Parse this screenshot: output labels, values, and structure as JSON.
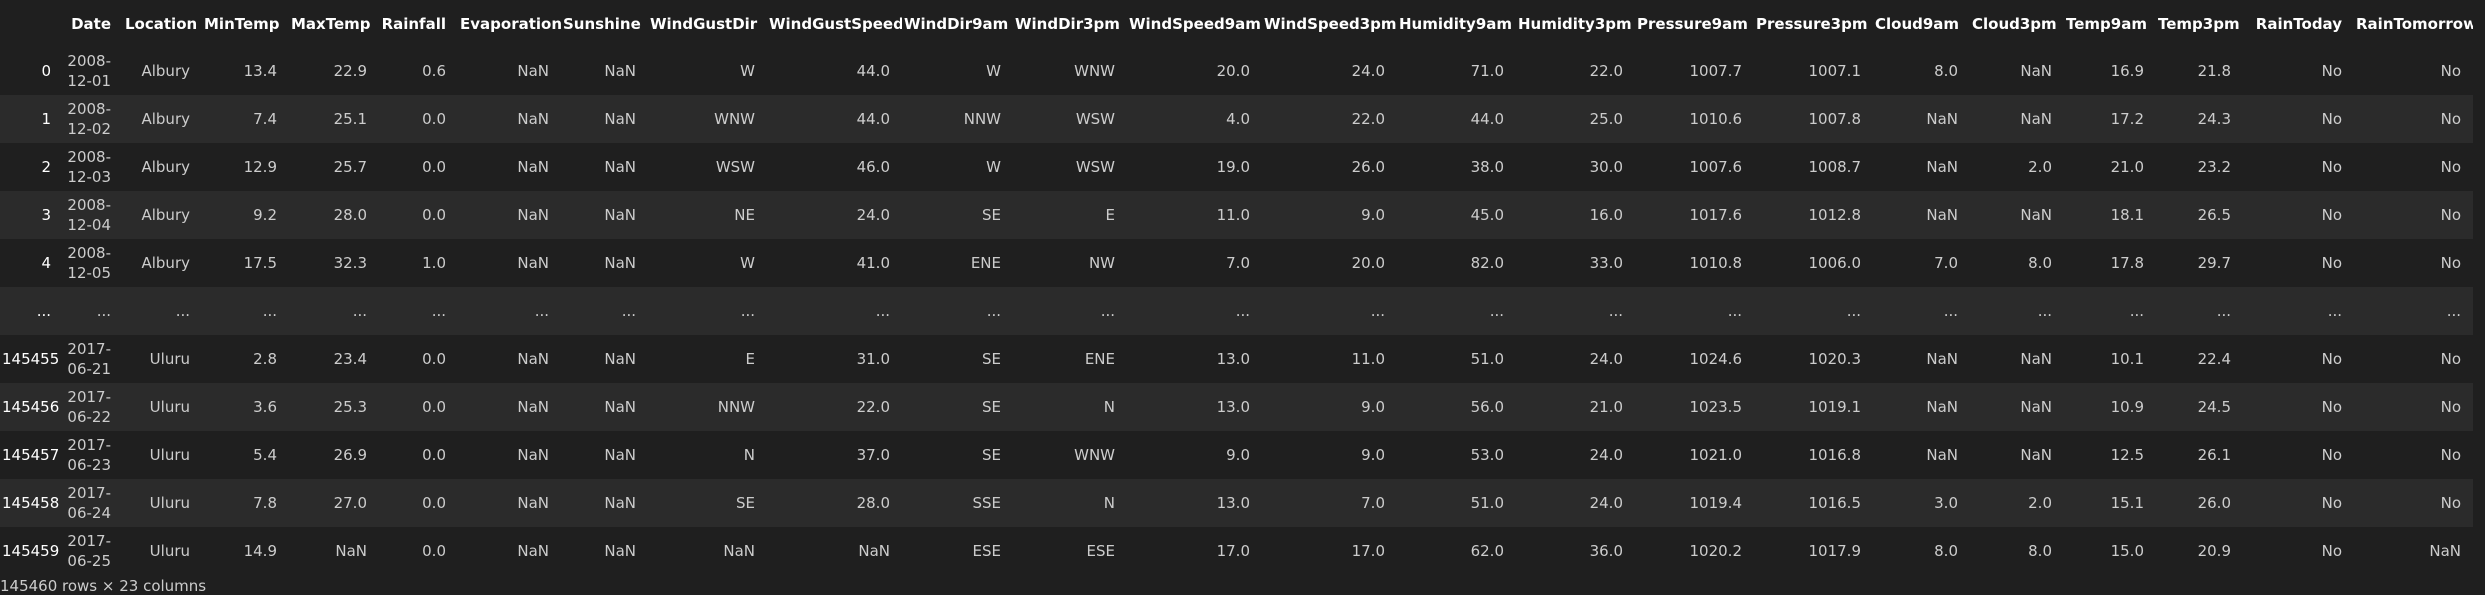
{
  "table": {
    "columns": [
      "Date",
      "Location",
      "MinTemp",
      "MaxTemp",
      "Rainfall",
      "Evaporation",
      "Sunshine",
      "WindGustDir",
      "WindGustSpeed",
      "WindDir9am",
      "WindDir3pm",
      "WindSpeed9am",
      "WindSpeed3pm",
      "Humidity9am",
      "Humidity3pm",
      "Pressure9am",
      "Pressure3pm",
      "Cloud9am",
      "Cloud3pm",
      "Temp9am",
      "Temp3pm",
      "RainToday",
      "RainTomorrow"
    ],
    "rows": [
      {
        "index": "0",
        "cells": [
          "2008-12-01",
          "Albury",
          "13.4",
          "22.9",
          "0.6",
          "NaN",
          "NaN",
          "W",
          "44.0",
          "W",
          "WNW",
          "20.0",
          "24.0",
          "71.0",
          "22.0",
          "1007.7",
          "1007.1",
          "8.0",
          "NaN",
          "16.9",
          "21.8",
          "No",
          "No"
        ]
      },
      {
        "index": "1",
        "cells": [
          "2008-12-02",
          "Albury",
          "7.4",
          "25.1",
          "0.0",
          "NaN",
          "NaN",
          "WNW",
          "44.0",
          "NNW",
          "WSW",
          "4.0",
          "22.0",
          "44.0",
          "25.0",
          "1010.6",
          "1007.8",
          "NaN",
          "NaN",
          "17.2",
          "24.3",
          "No",
          "No"
        ]
      },
      {
        "index": "2",
        "cells": [
          "2008-12-03",
          "Albury",
          "12.9",
          "25.7",
          "0.0",
          "NaN",
          "NaN",
          "WSW",
          "46.0",
          "W",
          "WSW",
          "19.0",
          "26.0",
          "38.0",
          "30.0",
          "1007.6",
          "1008.7",
          "NaN",
          "2.0",
          "21.0",
          "23.2",
          "No",
          "No"
        ]
      },
      {
        "index": "3",
        "cells": [
          "2008-12-04",
          "Albury",
          "9.2",
          "28.0",
          "0.0",
          "NaN",
          "NaN",
          "NE",
          "24.0",
          "SE",
          "E",
          "11.0",
          "9.0",
          "45.0",
          "16.0",
          "1017.6",
          "1012.8",
          "NaN",
          "NaN",
          "18.1",
          "26.5",
          "No",
          "No"
        ]
      },
      {
        "index": "4",
        "cells": [
          "2008-12-05",
          "Albury",
          "17.5",
          "32.3",
          "1.0",
          "NaN",
          "NaN",
          "W",
          "41.0",
          "ENE",
          "NW",
          "7.0",
          "20.0",
          "82.0",
          "33.0",
          "1010.8",
          "1006.0",
          "7.0",
          "8.0",
          "17.8",
          "29.7",
          "No",
          "No"
        ]
      },
      {
        "index": "...",
        "cells": [
          "...",
          "...",
          "...",
          "...",
          "...",
          "...",
          "...",
          "...",
          "...",
          "...",
          "...",
          "...",
          "...",
          "...",
          "...",
          "...",
          "...",
          "...",
          "...",
          "...",
          "...",
          "...",
          "..."
        ]
      },
      {
        "index": "145455",
        "cells": [
          "2017-06-21",
          "Uluru",
          "2.8",
          "23.4",
          "0.0",
          "NaN",
          "NaN",
          "E",
          "31.0",
          "SE",
          "ENE",
          "13.0",
          "11.0",
          "51.0",
          "24.0",
          "1024.6",
          "1020.3",
          "NaN",
          "NaN",
          "10.1",
          "22.4",
          "No",
          "No"
        ]
      },
      {
        "index": "145456",
        "cells": [
          "2017-06-22",
          "Uluru",
          "3.6",
          "25.3",
          "0.0",
          "NaN",
          "NaN",
          "NNW",
          "22.0",
          "SE",
          "N",
          "13.0",
          "9.0",
          "56.0",
          "21.0",
          "1023.5",
          "1019.1",
          "NaN",
          "NaN",
          "10.9",
          "24.5",
          "No",
          "No"
        ]
      },
      {
        "index": "145457",
        "cells": [
          "2017-06-23",
          "Uluru",
          "5.4",
          "26.9",
          "0.0",
          "NaN",
          "NaN",
          "N",
          "37.0",
          "SE",
          "WNW",
          "9.0",
          "9.0",
          "53.0",
          "24.0",
          "1021.0",
          "1016.8",
          "NaN",
          "NaN",
          "12.5",
          "26.1",
          "No",
          "No"
        ]
      },
      {
        "index": "145458",
        "cells": [
          "2017-06-24",
          "Uluru",
          "7.8",
          "27.0",
          "0.0",
          "NaN",
          "NaN",
          "SE",
          "28.0",
          "SSE",
          "N",
          "13.0",
          "7.0",
          "51.0",
          "24.0",
          "1019.4",
          "1016.5",
          "3.0",
          "2.0",
          "15.1",
          "26.0",
          "No",
          "No"
        ]
      },
      {
        "index": "145459",
        "cells": [
          "2017-06-25",
          "Uluru",
          "14.9",
          "NaN",
          "0.0",
          "NaN",
          "NaN",
          "NaN",
          "NaN",
          "ESE",
          "ESE",
          "17.0",
          "17.0",
          "62.0",
          "36.0",
          "1020.2",
          "1017.9",
          "8.0",
          "8.0",
          "15.0",
          "20.9",
          "No",
          "NaN"
        ]
      }
    ],
    "footer": "145460 rows × 23 columns"
  }
}
